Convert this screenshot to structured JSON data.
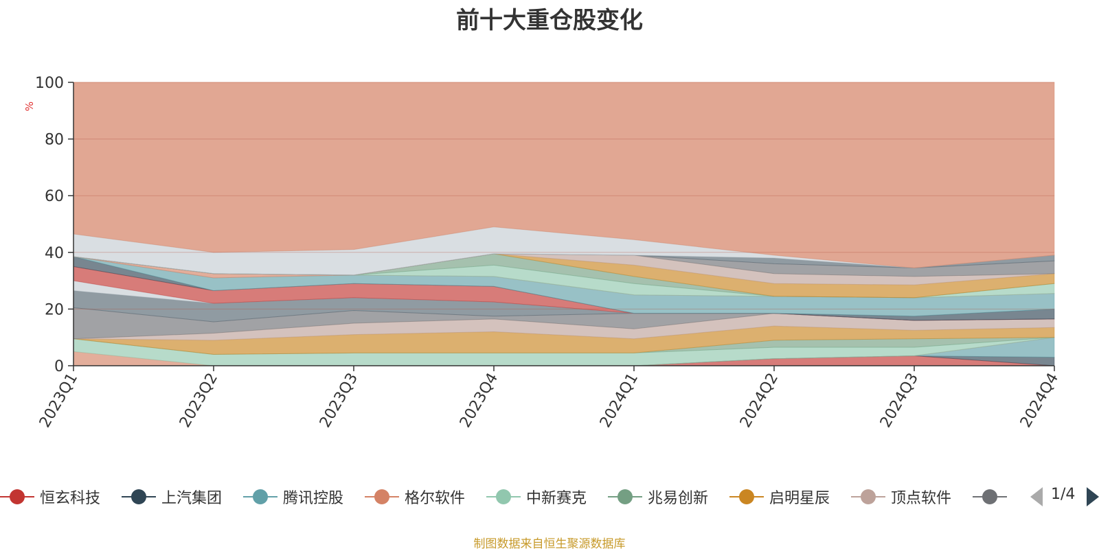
{
  "title": "前十大重仓股变化",
  "footer": "制图数据来自恒生聚源数据库",
  "pager": {
    "text": "1/4"
  },
  "chart_data": {
    "type": "area",
    "stacked": true,
    "ylabel": "%",
    "ylim": [
      0,
      100
    ],
    "yticks": [
      0,
      20,
      40,
      60,
      80,
      100
    ],
    "grid": true,
    "categories": [
      "2023Q1",
      "2023Q2",
      "2023Q3",
      "2023Q4",
      "2024Q1",
      "2024Q2",
      "2024Q3",
      "2024Q4"
    ],
    "series": [
      {
        "name": "恒玄科技",
        "color": "#c23531",
        "values": [
          0,
          0,
          0,
          0,
          0,
          2.5,
          3.5,
          0
        ]
      },
      {
        "name": "上汽集团",
        "color": "#2f4554",
        "values": [
          0,
          0,
          0,
          0,
          0,
          0,
          0,
          3
        ]
      },
      {
        "name": "腾讯控股",
        "color": "#61a0a8",
        "values": [
          0,
          0,
          0,
          0,
          0,
          0,
          0,
          7
        ]
      },
      {
        "name": "格尔软件",
        "color": "#d48265",
        "values": [
          5,
          0,
          0,
          0,
          0,
          0,
          0,
          0
        ]
      },
      {
        "name": "中新赛克",
        "color": "#91c7ae",
        "values": [
          4.5,
          4,
          4.5,
          4.5,
          4.5,
          4,
          3,
          0
        ]
      },
      {
        "name": "兆易创新",
        "color": "#749f83",
        "values": [
          0,
          0,
          0,
          0,
          0,
          2.5,
          3,
          0
        ]
      },
      {
        "name": "启明星辰",
        "color": "#ca8622",
        "values": [
          0,
          5,
          6.5,
          7.5,
          5,
          5,
          3,
          3.5
        ]
      },
      {
        "name": "顶点软件",
        "color": "#bda29a",
        "values": [
          0,
          2.5,
          4,
          4.5,
          3.5,
          4.5,
          3.5,
          3
        ]
      },
      {
        "values": [
          11,
          4,
          4.5,
          1,
          5.5,
          0,
          0,
          0
        ]
      },
      {
        "values": [
          6,
          6.5,
          4.5,
          5,
          0,
          0,
          0,
          0
        ]
      },
      {
        "values": [
          3.5,
          0,
          0,
          0,
          0,
          0,
          0,
          0
        ]
      },
      {
        "values": [
          5,
          4.5,
          5,
          5.5,
          0,
          0,
          0,
          0
        ]
      },
      {
        "values": [
          3.5,
          0,
          0,
          0,
          0,
          0,
          1.5,
          3.5
        ]
      },
      {
        "values": [
          0,
          4.5,
          3,
          3.5,
          6.5,
          6,
          6.5,
          5.5
        ]
      },
      {
        "values": [
          0,
          1.5,
          0,
          0,
          0,
          0,
          0,
          0
        ]
      },
      {
        "values": [
          0,
          0,
          0,
          4,
          4,
          0,
          0,
          3.5
        ]
      },
      {
        "values": [
          0,
          0,
          0,
          4,
          2.5,
          0,
          0,
          0
        ]
      },
      {
        "values": [
          0,
          0,
          0,
          0,
          4,
          4.5,
          4.5,
          3.5
        ]
      },
      {
        "values": [
          0,
          0,
          0,
          0,
          3.5,
          3.5,
          3,
          0
        ]
      },
      {
        "values": [
          0,
          0,
          0,
          0,
          0,
          3.5,
          3,
          4.5
        ]
      },
      {
        "values": [
          0,
          0,
          0,
          0,
          0,
          2,
          0,
          2
        ]
      },
      {
        "values": [
          8,
          7.5,
          9,
          9.5,
          5.5,
          1,
          0,
          0
        ]
      }
    ]
  }
}
